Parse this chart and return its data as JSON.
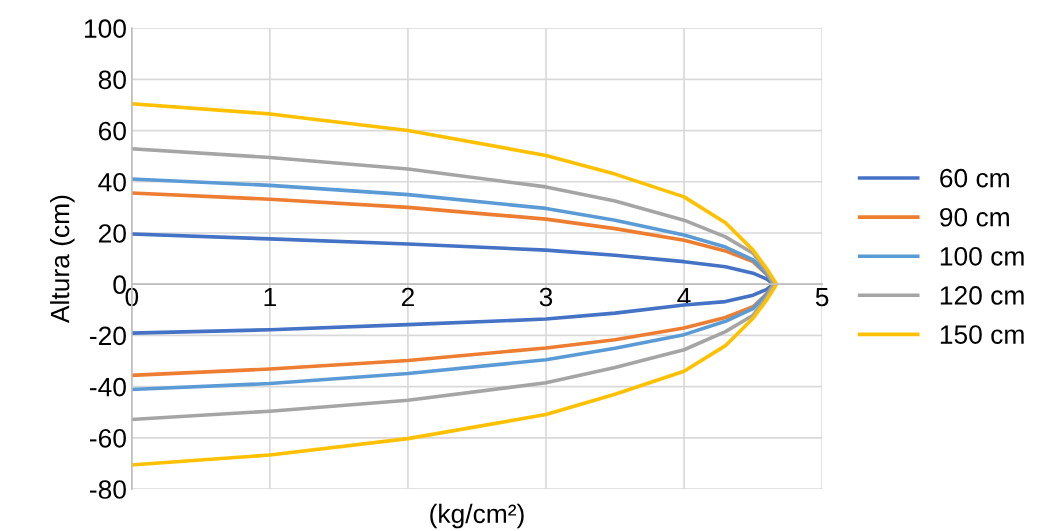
{
  "chart_data": {
    "type": "line",
    "xlabel": "(kg/cm²)",
    "ylabel": "Altura (cm)",
    "xlim": [
      0,
      5
    ],
    "xticks": [
      0,
      1,
      2,
      3,
      4,
      5
    ],
    "ylim": [
      -80,
      100
    ],
    "yticks": [
      -80,
      -60,
      -40,
      -20,
      0,
      20,
      40,
      60,
      80,
      100
    ],
    "grid": true,
    "legend": "right",
    "marker": "none",
    "line_style": "solid",
    "series": [
      {
        "name": "60 cm",
        "color": "#4472c4",
        "x": [
          0,
          1,
          2,
          3,
          3.5,
          4,
          4.3,
          4.5,
          4.6,
          4.65,
          4.6,
          4.5,
          4.3,
          4,
          3.5,
          3,
          2,
          1,
          0
        ],
        "values": [
          19.6,
          17.7,
          15.7,
          13.3,
          11.3,
          8.8,
          6.8,
          4.3,
          2,
          0,
          -2,
          -4.3,
          -6.8,
          -8.1,
          -11.3,
          -13.6,
          -15.8,
          -17.8,
          -19.1
        ]
      },
      {
        "name": "90 cm",
        "color": "#ed7d31",
        "x": [
          0,
          1,
          2,
          3,
          3.5,
          4,
          4.3,
          4.5,
          4.6,
          4.65,
          4.6,
          4.5,
          4.3,
          4,
          3.5,
          3,
          2,
          1,
          0
        ],
        "values": [
          35.6,
          33.2,
          30,
          25.4,
          21.7,
          17.2,
          13,
          8.8,
          3.7,
          0,
          -3.7,
          -8.8,
          -13,
          -17.1,
          -21.7,
          -24.9,
          -29.8,
          -33.1,
          -35.6
        ]
      },
      {
        "name": "100 cm",
        "color": "#5b9bd5",
        "x": [
          0,
          1,
          2,
          3,
          3.5,
          4,
          4.3,
          4.5,
          4.6,
          4.65,
          4.6,
          4.5,
          4.3,
          4,
          3.5,
          3,
          2,
          1,
          0
        ],
        "values": [
          41.1,
          38.6,
          35,
          29.6,
          25,
          19.2,
          14.5,
          9.5,
          4,
          0,
          -4,
          -9.5,
          -14.5,
          -19.7,
          -25,
          -29.5,
          -34.9,
          -38.8,
          -41.1
        ]
      },
      {
        "name": "120 cm",
        "color": "#a5a5a5",
        "x": [
          0,
          1,
          2,
          3,
          3.5,
          4,
          4.3,
          4.5,
          4.6,
          4.65,
          4.6,
          4.5,
          4.3,
          4,
          3.5,
          3,
          2,
          1,
          0
        ],
        "values": [
          52.9,
          49.5,
          45,
          38,
          32.5,
          25,
          18.5,
          12.1,
          5,
          0,
          -5,
          -12.1,
          -18.5,
          -25.6,
          -32.5,
          -38.5,
          -45.3,
          -49.6,
          -52.8
        ]
      },
      {
        "name": "150 cm",
        "color": "#ffc000",
        "x": [
          0,
          1,
          2,
          3,
          3.5,
          4,
          4.3,
          4.5,
          4.6,
          4.67,
          4.6,
          4.5,
          4.3,
          4,
          3.5,
          3,
          2,
          1,
          0
        ],
        "values": [
          70.5,
          66.5,
          60,
          50.3,
          43,
          34.1,
          24,
          13.3,
          6,
          0,
          -6,
          -13.3,
          -24,
          -34,
          -43,
          -50.9,
          -60.3,
          -66.7,
          -70.6
        ]
      }
    ]
  }
}
